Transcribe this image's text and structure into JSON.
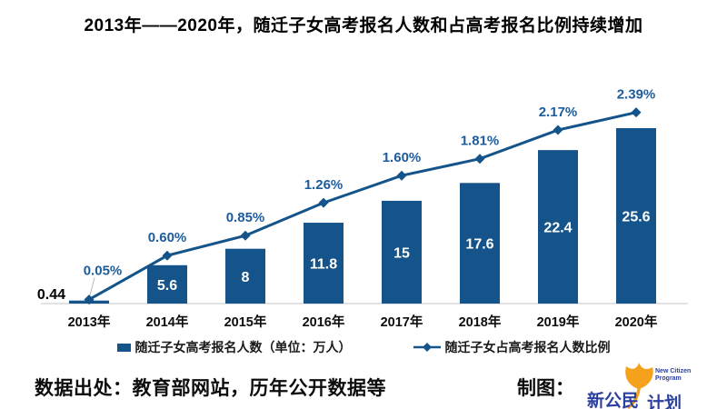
{
  "title": "2013年——2020年，随迁子女高考报名人数和占高考报名比例持续增加",
  "chart_data": {
    "type": "bar",
    "subtype": "bar-line-combo",
    "title": "2013年——2020年，随迁子女高考报名人数和占高考报名比例持续增加",
    "categories": [
      "2013年",
      "2014年",
      "2015年",
      "2016年",
      "2017年",
      "2018年",
      "2019年",
      "2020年"
    ],
    "series": [
      {
        "name": "随迁子女高考报名人数（单位：万人）",
        "type": "bar",
        "values": [
          0.44,
          5.6,
          8,
          11.8,
          15,
          17.6,
          22.4,
          25.6
        ],
        "data_labels": [
          "0.44",
          "5.6",
          "8",
          "11.8",
          "15",
          "17.6",
          "22.4",
          "25.6"
        ]
      },
      {
        "name": "随迁子女占高考报名人数比例",
        "type": "line",
        "values": [
          0.05,
          0.6,
          0.85,
          1.26,
          1.6,
          1.81,
          2.17,
          2.39
        ],
        "data_labels": [
          "0.05%",
          "0.60%",
          "0.85%",
          "1.26%",
          "1.60%",
          "1.81%",
          "2.17%",
          "2.39%"
        ]
      }
    ],
    "xlabel": "",
    "ylabel": "",
    "bar_axis_range": [
      0,
      27
    ],
    "line_axis_range": [
      0,
      2.75
    ],
    "grid": false,
    "legend_position": "bottom"
  },
  "footer": {
    "source": "数据出处：教育部网站，历年公开数据等",
    "credit_label": "制图：",
    "logo": {
      "name_part1": "新公民",
      "name_part2": "计划",
      "subtext_line1": "New Citizen",
      "subtext_line2": "Program"
    }
  },
  "colors": {
    "bar": "#15548A",
    "line": "#15548A",
    "marker": "#15548A",
    "pct_label": "#1C5C9C",
    "bar_value_label": "#FFFFFF",
    "first_bar_label": "#000000",
    "axis_line": "#D9D9D9",
    "logo_orange": "#F5A11C",
    "logo_blue": "#2B3F9E"
  }
}
